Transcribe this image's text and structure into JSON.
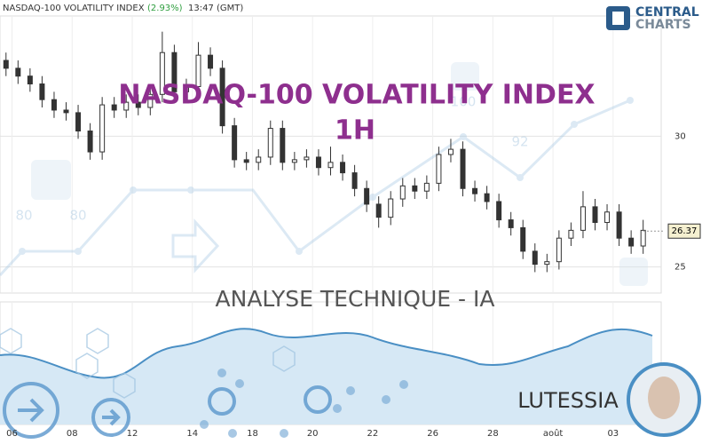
{
  "chart_data": {
    "type": "candlestick",
    "title": "NASDAQ-100 VOLATILITY INDEX",
    "subtitle": "1H",
    "header": {
      "name": "NASDAQ-100 VOLATILITY INDEX",
      "change": "(2.93%)",
      "time": "13:47 (GMT)"
    },
    "open": [
      32.9,
      32.6,
      32.3,
      32.0,
      31.4,
      31.0,
      30.9,
      30.2,
      29.4,
      31.2,
      31.0,
      31.3,
      31.1,
      31.6,
      33.2,
      31.7,
      31.9,
      33.1,
      32.6,
      30.4,
      29.1,
      29.0,
      29.2,
      30.3,
      29.0,
      29.1,
      29.2,
      28.8,
      29.0,
      28.6,
      28.0,
      27.4,
      26.9,
      27.6,
      28.1,
      27.9,
      28.2,
      29.3,
      29.5,
      28.0,
      27.8,
      27.5,
      26.8,
      26.5,
      25.6,
      25.1,
      25.2,
      26.1,
      26.4,
      27.3,
      26.7,
      27.1,
      26.1,
      25.8
    ],
    "high": [
      33.2,
      32.9,
      32.6,
      32.3,
      31.7,
      31.3,
      31.2,
      30.5,
      31.5,
      31.5,
      31.6,
      31.6,
      31.9,
      34.0,
      33.5,
      32.2,
      33.6,
      33.4,
      32.9,
      30.7,
      29.4,
      29.5,
      30.6,
      30.6,
      29.4,
      29.5,
      29.5,
      29.6,
      29.3,
      28.9,
      28.3,
      27.7,
      27.9,
      28.4,
      28.4,
      28.5,
      29.6,
      29.9,
      29.8,
      28.3,
      28.1,
      27.8,
      27.1,
      26.8,
      25.9,
      25.5,
      26.4,
      26.7,
      27.9,
      27.6,
      27.4,
      27.4,
      26.4,
      26.8
    ],
    "low": [
      32.3,
      32.0,
      31.7,
      31.1,
      30.7,
      30.6,
      29.9,
      29.1,
      29.1,
      30.7,
      30.7,
      30.8,
      30.8,
      31.3,
      31.4,
      31.4,
      31.6,
      32.3,
      30.1,
      28.8,
      28.7,
      28.7,
      28.9,
      28.7,
      28.7,
      28.8,
      28.5,
      28.5,
      28.3,
      27.7,
      27.1,
      26.5,
      26.6,
      27.3,
      27.6,
      27.6,
      27.9,
      29.0,
      27.7,
      27.5,
      27.2,
      26.5,
      26.2,
      25.3,
      24.8,
      24.8,
      24.9,
      25.8,
      26.1,
      26.4,
      26.4,
      25.8,
      25.5,
      25.5
    ],
    "close": [
      32.6,
      32.3,
      32.0,
      31.4,
      31.0,
      30.9,
      30.2,
      29.4,
      31.2,
      31.0,
      31.3,
      31.1,
      31.6,
      33.2,
      31.7,
      31.9,
      33.1,
      32.6,
      30.4,
      29.1,
      29.0,
      29.2,
      30.3,
      29.0,
      29.1,
      29.2,
      28.8,
      29.0,
      28.6,
      28.0,
      27.4,
      26.9,
      27.6,
      28.1,
      27.9,
      28.2,
      29.3,
      29.5,
      28.0,
      27.8,
      27.5,
      26.8,
      26.5,
      25.6,
      25.1,
      25.2,
      26.1,
      26.4,
      27.3,
      26.7,
      27.1,
      26.1,
      25.8,
      26.4
    ],
    "last_price": 26.37,
    "ylim": [
      24,
      34.6
    ],
    "yticks": [
      25,
      30
    ],
    "xlim": [
      0,
      110
    ],
    "xticks": [
      {
        "value": 2,
        "label": "06"
      },
      {
        "value": 12,
        "label": "08"
      },
      {
        "value": 22,
        "label": "12"
      },
      {
        "value": 32,
        "label": "14"
      },
      {
        "value": 42,
        "label": "18"
      },
      {
        "value": 52,
        "label": "20"
      },
      {
        "value": 62,
        "label": "22"
      },
      {
        "value": 72,
        "label": "26"
      },
      {
        "value": 82,
        "label": "28"
      },
      {
        "value": 92,
        "label": "août"
      },
      {
        "value": 102,
        "label": "03"
      }
    ],
    "grid": true,
    "color": "#333333"
  },
  "overlay": {
    "analysis": "ANALYSE TECHNIQUE - IA",
    "brand": "LUTESSIA",
    "logo_top": "CENTRAL",
    "logo_bottom": "CHARTS",
    "watermark_labels": [
      "80",
      "80",
      "100",
      "92"
    ]
  }
}
